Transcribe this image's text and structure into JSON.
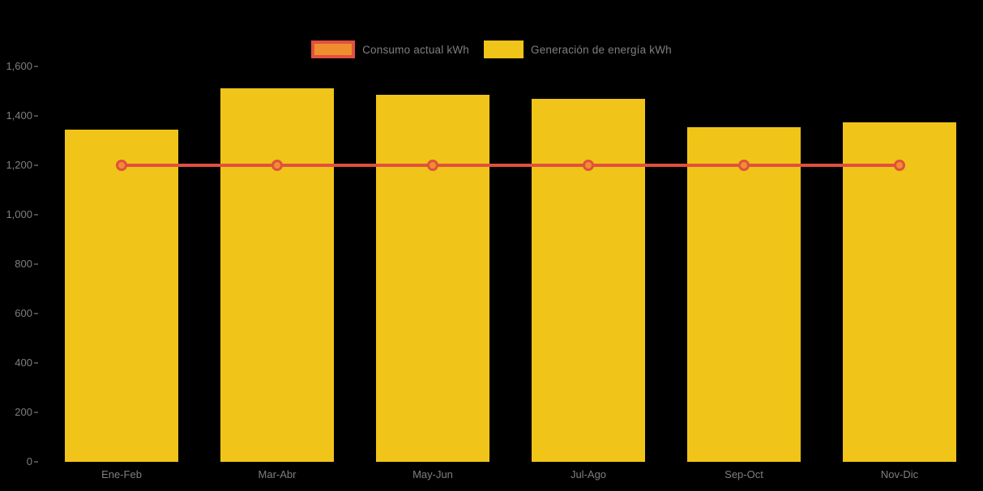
{
  "legend": {
    "items": [
      {
        "label": "Consumo actual kWh"
      },
      {
        "label": "Generación de energía kWh"
      }
    ]
  },
  "chart_data": {
    "type": "bar",
    "categories": [
      "Ene-Feb",
      "Mar-Abr",
      "May-Jun",
      "Jul-Ago",
      "Sep-Oct",
      "Nov-Dic"
    ],
    "series": [
      {
        "name": "Consumo actual kWh",
        "type": "line",
        "color": "#E2503F",
        "marker_fill": "#EF8E2E",
        "values": [
          1200,
          1200,
          1200,
          1200,
          1200,
          1200
        ]
      },
      {
        "name": "Generación de energía kWh",
        "type": "bar",
        "color": "#F0C419",
        "values": [
          1345,
          1510,
          1485,
          1470,
          1355,
          1375
        ]
      }
    ],
    "ylim": [
      0,
      1600
    ],
    "yticks": [
      0,
      200,
      400,
      600,
      800,
      1000,
      1200,
      1400,
      1600
    ],
    "ytick_labels": [
      "0",
      "200",
      "400",
      "600",
      "800",
      "1,000",
      "1,200",
      "1,400",
      "1,600"
    ],
    "grid": false,
    "legend_position": "top",
    "background": "#000000",
    "text_color": "#7f7f7f"
  }
}
